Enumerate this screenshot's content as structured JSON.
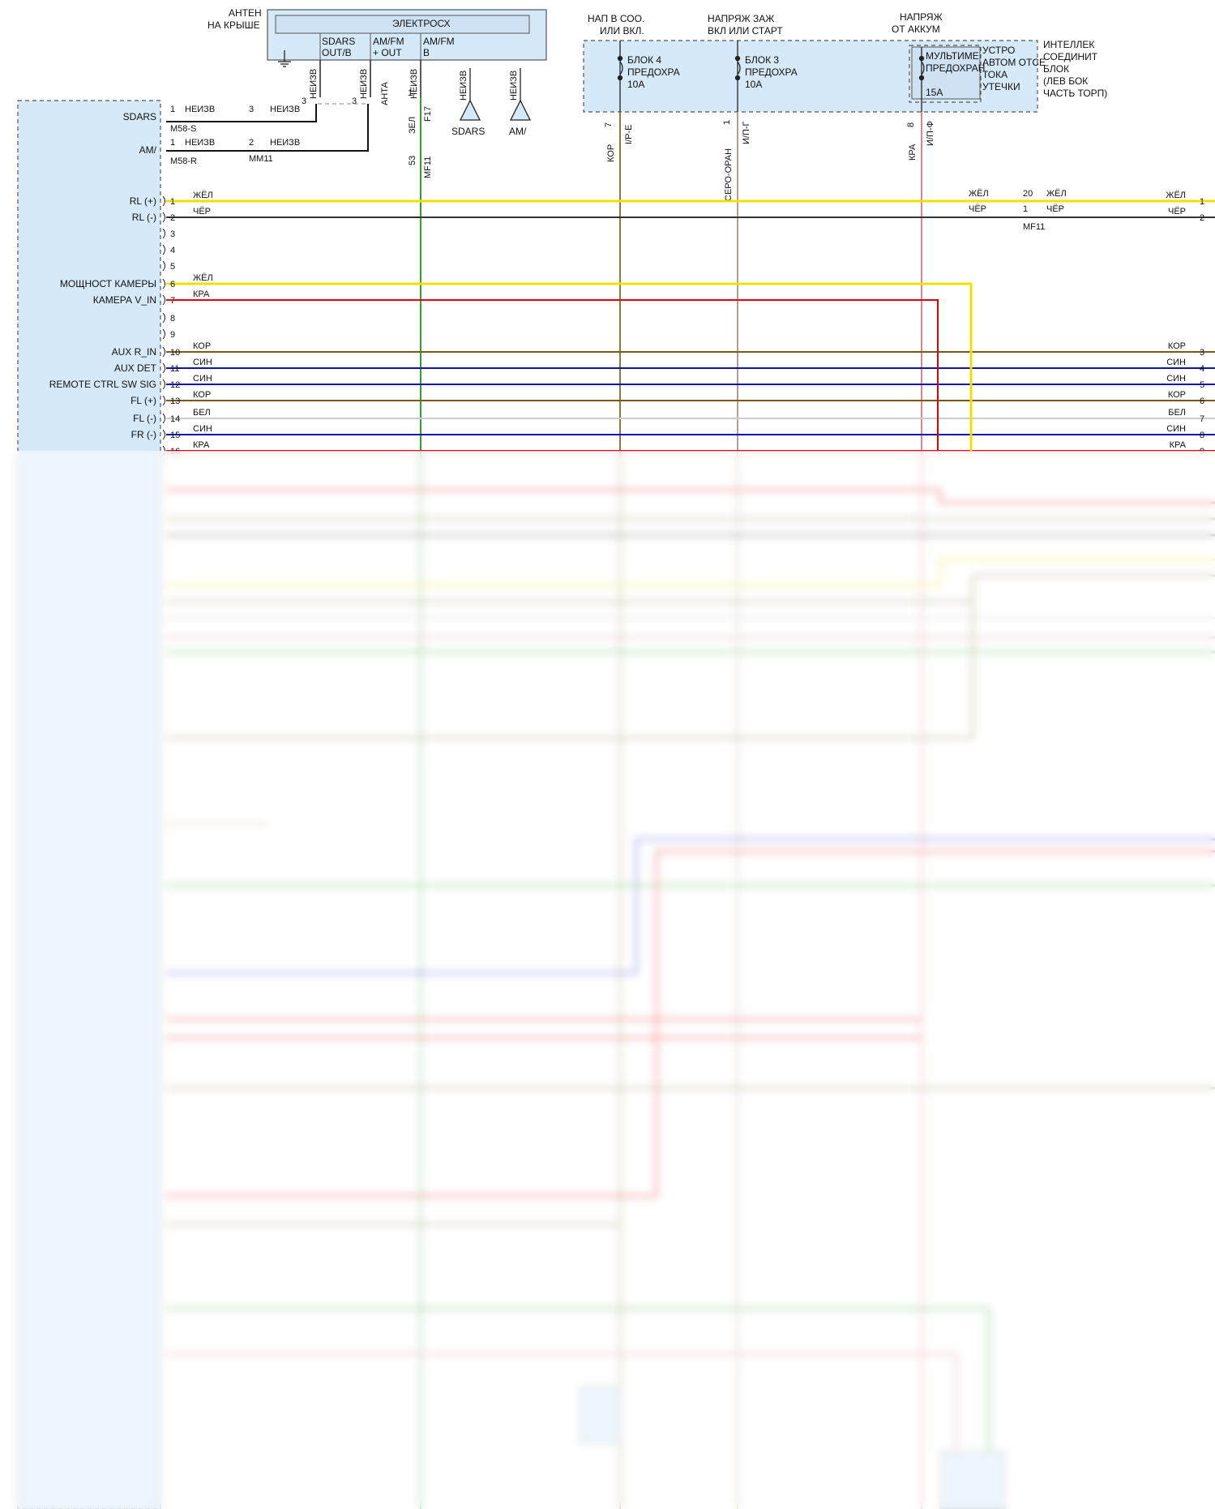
{
  "colors": {
    "ЖЁЛ": "#f0e000",
    "ЧЁР": "#333333",
    "КРА": "#e00000",
    "КОР": "#7a5a10",
    "СИН": "#1010b0",
    "БЕЛ": "#cccccc",
    "ЗЕЛ": "#30a030",
    "СЕРО-ОРАН": "#b0a090",
    "ПИНК": "#e08090",
    "КОРТАН": "#8a7a40",
    "module_fill": "#d6e9f8",
    "module_stroke": "#555555"
  },
  "radio": {
    "pins": [
      {
        "num": "1",
        "signal": "SDARS",
        "wire": "НЕИЗВ"
      },
      {
        "num": "1",
        "signal": "AM/",
        "wire": "НЕИЗВ"
      },
      {
        "num": "1",
        "signal": "RL (+)",
        "wire": "ЖЁЛ"
      },
      {
        "num": "2",
        "signal": "RL (-)",
        "wire": "ЧЁР"
      },
      {
        "num": "3",
        "signal": "",
        "wire": ""
      },
      {
        "num": "4",
        "signal": "",
        "wire": ""
      },
      {
        "num": "5",
        "signal": "",
        "wire": ""
      },
      {
        "num": "6",
        "signal": "МОЩНОСТ КАМЕРЫ",
        "wire": "ЖЁЛ"
      },
      {
        "num": "7",
        "signal": "КАМЕРА V_IN",
        "wire": "КРА"
      },
      {
        "num": "8",
        "signal": "",
        "wire": ""
      },
      {
        "num": "9",
        "signal": "",
        "wire": ""
      },
      {
        "num": "10",
        "signal": "AUX R_IN",
        "wire": "КОР"
      },
      {
        "num": "11",
        "signal": "AUX DET",
        "wire": "СИН"
      },
      {
        "num": "12",
        "signal": "REMOTE CTRL SW SIG",
        "wire": "СИН"
      },
      {
        "num": "13",
        "signal": "FL (+)",
        "wire": "КОР"
      },
      {
        "num": "14",
        "signal": "FL (-)",
        "wire": "БЕЛ"
      },
      {
        "num": "15",
        "signal": "FR (-)",
        "wire": "СИН"
      },
      {
        "num": "16",
        "signal": "",
        "wire": "КРА"
      }
    ],
    "connectors": {
      "sdars": "M58-S",
      "am": "M58-R",
      "am_inline": "MM11",
      "sdars_pin": "3",
      "am_pin": "2",
      "sdars_wire": "НЕИЗВ",
      "am_wire": "НЕИЗВ"
    }
  },
  "antenna": {
    "caption_line1": "АНТЕН",
    "caption_line2": "НА КРЫШЕ",
    "module_title": "ЭЛЕКТРОСХ",
    "cols": [
      "SDARS",
      "OUT/B",
      "AM/FM",
      "+ OUT",
      "AM/FM",
      "B"
    ],
    "wires": [
      "НЕИЗВ",
      "НЕИЗВ",
      "АНТА",
      "НЕИЗВ"
    ],
    "sub_sdars": "SDARS",
    "sub_am": "AM/",
    "sub_wire1": "НЕИЗВ",
    "sub_wire2": "НЕИЗВ",
    "green_wire": "ЗЕЛ",
    "green_conn_top": "F17",
    "green_conn_bot": "MF11",
    "green_pin_top": "1",
    "green_pin_bot": "53",
    "pin3": "3",
    "pin3b": "3"
  },
  "fuse_box": {
    "headers": [
      {
        "line1": "НАП В СОО.",
        "line2": "ИЛИ ВКЛ."
      },
      {
        "line1": "НАПРЯЖ ЗАЖ",
        "line2": "ВКЛ ИЛИ СТАРТ"
      },
      {
        "line1": "НАПРЯЖ",
        "line2": "ОТ АККУМ"
      }
    ],
    "fuses": [
      {
        "line1": "БЛОК 4",
        "line2": "ПРЕДОХРА",
        "line3": "10A",
        "pin": "7",
        "wire": "КОР",
        "circuit": "I/P-E"
      },
      {
        "line1": "БЛОК 3",
        "line2": "ПРЕДОХРА",
        "line3": "10A",
        "pin": "1",
        "wire": "СЕРО-ОРАН",
        "circuit": "И/П-Г"
      },
      {
        "line1": "МУЛЬТИМЕ",
        "line2": "ПРЕДОХРАН",
        "line3": "15A",
        "pin": "8",
        "wire": "КРА",
        "circuit": "И/П-Ф"
      }
    ],
    "ecu_lines": [
      "УСТРО",
      "АВТОМ ОТСЕ",
      "ТОКА",
      "УТЕЧКИ"
    ],
    "block_lines": [
      "ИНТЕЛЛЕК",
      "СОЕДИНИТ",
      "БЛОК",
      "(ЛЕВ БОК",
      "ЧАСТЬ ТОРП)"
    ]
  },
  "right_side": {
    "inline": {
      "conn": "MF11",
      "pin_a": "20",
      "pin_b": "1",
      "wire_a": "ЖЁЛ",
      "wire_b": "ЧЁР",
      "wire_a2": "ЖЁЛ",
      "wire_b2": "ЧЁР"
    },
    "pins": [
      {
        "num": "1",
        "wire": "ЖЁЛ"
      },
      {
        "num": "2",
        "wire": "ЧЁР"
      },
      {
        "num": "3",
        "wire": "КОР"
      },
      {
        "num": "4",
        "wire": "СИН"
      },
      {
        "num": "5",
        "wire": "СИН"
      },
      {
        "num": "6",
        "wire": "КОР"
      },
      {
        "num": "7",
        "wire": "БЕЛ"
      },
      {
        "num": "8",
        "wire": "СИН"
      },
      {
        "num": "9",
        "wire": "КРА"
      }
    ]
  }
}
